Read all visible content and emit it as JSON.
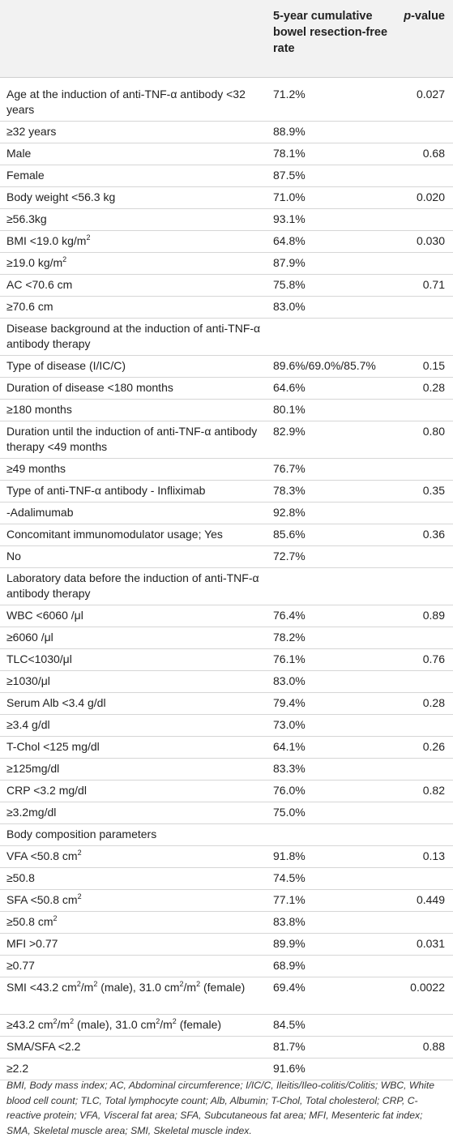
{
  "header": {
    "col_rate": "5-year cumulative bowel resection-free rate",
    "col_p_prefix": "p",
    "col_p_suffix": "-value"
  },
  "rows": [
    {
      "label": "Age at the induction of anti-TNF-α antibody <32 years",
      "rate": "71.2%",
      "p": "0.027"
    },
    {
      "label": "≥32 years",
      "rate": "88.9%",
      "p": ""
    },
    {
      "label": "Male",
      "rate": "78.1%",
      "p": "0.68"
    },
    {
      "label": "Female",
      "rate": "87.5%",
      "p": ""
    },
    {
      "label": "Body weight <56.3 kg",
      "rate": "71.0%",
      "p": "0.020"
    },
    {
      "label": "≥56.3kg",
      "rate": "93.1%",
      "p": ""
    },
    {
      "label_pre": "BMI <19.0 kg/m",
      "sup": "2",
      "label_post": "",
      "rate": "64.8%",
      "p": "0.030"
    },
    {
      "label_pre": "≥19.0 kg/m",
      "sup": "2",
      "label_post": "",
      "rate": "87.9%",
      "p": ""
    },
    {
      "label": "AC <70.6 cm",
      "rate": "75.8%",
      "p": "0.71"
    },
    {
      "label": "≥70.6 cm",
      "rate": "83.0%",
      "p": ""
    },
    {
      "label": "Disease background at the induction of anti-TNF-α antibody therapy",
      "rate": "",
      "p": ""
    },
    {
      "label": "Type of disease (I/IC/C)",
      "rate": "89.6%/69.0%/85.7%",
      "p": "0.15"
    },
    {
      "label": "Duration of disease <180 months",
      "rate": "64.6%",
      "p": "0.28"
    },
    {
      "label": "≥180 months",
      "rate": "80.1%",
      "p": ""
    },
    {
      "label": "Duration until the induction of anti-TNF-α antibody therapy <49 months",
      "rate": "82.9%",
      "p": "0.80"
    },
    {
      "label": "≥49 months",
      "rate": "76.7%",
      "p": ""
    },
    {
      "label": "Type of anti-TNF-α antibody - Infliximab",
      "rate": "78.3%",
      "p": "0.35"
    },
    {
      "label": "-Adalimumab",
      "rate": "92.8%",
      "p": ""
    },
    {
      "label": "Concomitant immunomodulator usage; Yes",
      "rate": "85.6%",
      "p": "0.36"
    },
    {
      "label": "No",
      "rate": "72.7%",
      "p": ""
    },
    {
      "label": "Laboratory data before the induction of anti-TNF-α antibody therapy",
      "rate": "",
      "p": ""
    },
    {
      "label": "WBC <6060 /μl",
      "rate": "76.4%",
      "p": "0.89"
    },
    {
      "label": "≥6060 /μl",
      "rate": "78.2%",
      "p": ""
    },
    {
      "label": "TLC<1030/μl",
      "rate": "76.1%",
      "p": "0.76"
    },
    {
      "label": "≥1030/μl",
      "rate": "83.0%",
      "p": ""
    },
    {
      "label": "Serum Alb <3.4 g/dl",
      "rate": "79.4%",
      "p": "0.28"
    },
    {
      "label": "≥3.4 g/dl",
      "rate": "73.0%",
      "p": ""
    },
    {
      "label": "T-Chol <125 mg/dl",
      "rate": "64.1%",
      "p": "0.26"
    },
    {
      "label": "≥125mg/dl",
      "rate": "83.3%",
      "p": ""
    },
    {
      "label": "CRP <3.2 mg/dl",
      "rate": "76.0%",
      "p": "0.82"
    },
    {
      "label": "≥3.2mg/dl",
      "rate": "75.0%",
      "p": ""
    },
    {
      "label": "Body composition parameters",
      "rate": "",
      "p": ""
    },
    {
      "label_pre": "VFA <50.8 cm",
      "sup": "2",
      "label_post": "",
      "rate": "91.8%",
      "p": "0.13"
    },
    {
      "label": "≥50.8",
      "rate": "74.5%",
      "p": ""
    },
    {
      "label_pre": "SFA <50.8 cm",
      "sup": "2",
      "label_post": "",
      "rate": "77.1%",
      "p": "0.449"
    },
    {
      "label_pre": "≥50.8 cm",
      "sup": "2",
      "label_post": "",
      "rate": "83.8%",
      "p": ""
    },
    {
      "label": "MFI >0.77",
      "rate": "89.9%",
      "p": "0.031"
    },
    {
      "label": "≥0.77",
      "rate": "68.9%",
      "p": ""
    },
    {
      "label_pre": "SMI <43.2 cm",
      "sup": "2",
      "label_mid": "/m",
      "sup2": "2",
      "label_mid2": " (male), 31.0 cm",
      "sup3": "2",
      "label_mid3": "/m",
      "sup4": "2",
      "label_post": " (female)",
      "rate": "69.4%",
      "p": "0.0022"
    },
    {
      "label_pre": "≥43.2 cm",
      "sup": "2",
      "label_mid": "/m",
      "sup2": "2",
      "label_mid2": " (male), 31.0 cm",
      "sup3": "2",
      "label_mid3": "/m",
      "sup4": "2",
      "label_post": " (female)",
      "rate": "84.5%",
      "p": ""
    },
    {
      "label": "SMA/SFA <2.2",
      "rate": "81.7%",
      "p": "0.88"
    },
    {
      "label": "≥2.2",
      "rate": "91.6%",
      "p": ""
    }
  ],
  "footnote": "BMI, Body mass index; AC, Abdominal circumference; I/IC/C, Ileitis/Ileo-colitis/Colitis; WBC, White blood cell count; TLC, Total lymphocyte count; Alb, Albumin; T-Chol, Total cholesterol; CRP, C-reactive protein; VFA, Visceral fat area; SFA, Subcutaneous fat area; MFI, Mesenteric fat index; SMA, Skeletal muscle area; SMI, Skeletal muscle index."
}
